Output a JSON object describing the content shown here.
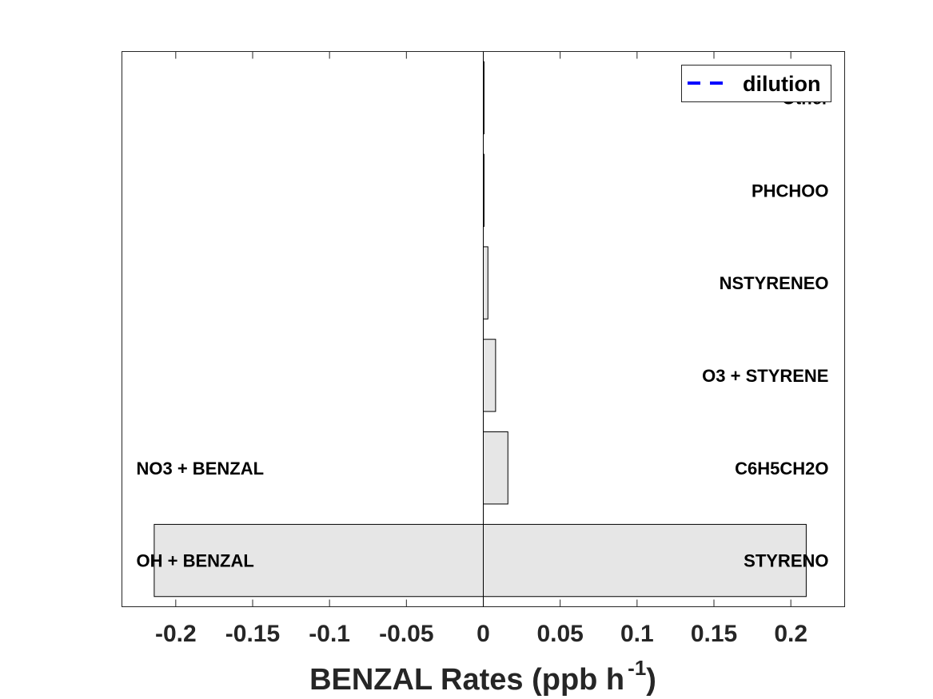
{
  "chart_data": {
    "type": "bar",
    "orientation": "horizontal",
    "xlabel_main": "BENZAL Rates (ppb h",
    "xlabel_exponent": "-1",
    "xlabel_close": ")",
    "xlim": [
      -0.235,
      0.235
    ],
    "xticks": [
      -0.2,
      -0.15,
      -0.1,
      -0.05,
      0,
      0.05,
      0.1,
      0.15,
      0.2
    ],
    "xtick_labels": [
      "-0.2",
      "-0.15",
      "-0.1",
      "-0.05",
      "0",
      "0.05",
      "0.1",
      "0.15",
      "0.2"
    ],
    "production": {
      "labels": [
        "STYRENO",
        "C6H5CH2O",
        "O3 + STYRENE",
        "NSTYRENEO",
        "PHCHOO",
        "Other"
      ],
      "values": [
        0.21,
        0.016,
        0.008,
        0.003,
        0.0005,
        0.0005
      ]
    },
    "loss": {
      "labels": [
        "OH + BENZAL",
        "NO3 + BENZAL"
      ],
      "values": [
        -0.214,
        0
      ]
    },
    "legend": {
      "label": "dilution",
      "position": "top-right",
      "line_style": "dashed",
      "color": "#0000ff"
    },
    "bar_fill": "#e6e6e6",
    "bar_edge": "#000000",
    "grid": false
  }
}
